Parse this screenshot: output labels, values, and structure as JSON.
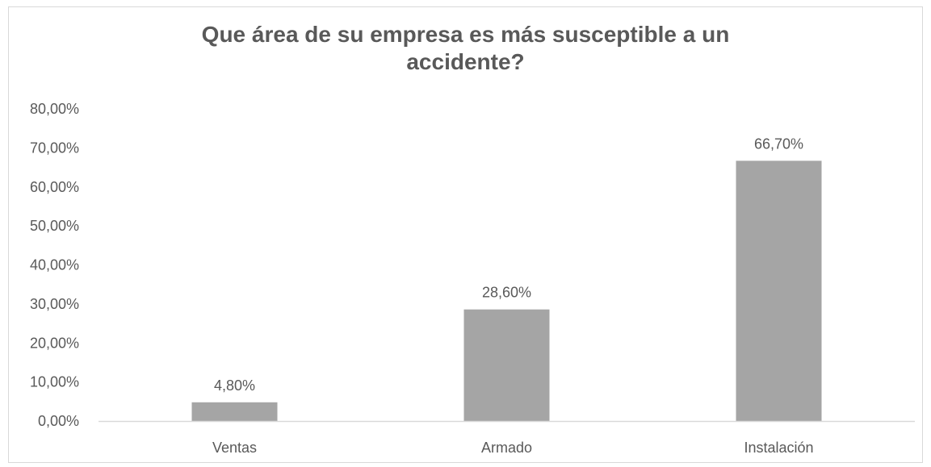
{
  "chart_data": {
    "type": "bar",
    "title_lines": [
      "Que área de su empresa es más susceptible a un",
      "accidente?"
    ],
    "categories": [
      "Ventas",
      "Armado",
      "Instalación"
    ],
    "values": [
      4.8,
      28.6,
      66.7
    ],
    "data_labels": [
      "4,80%",
      "28,60%",
      "66,70%"
    ],
    "ylim": [
      0,
      80
    ],
    "yticks": [
      0,
      10,
      20,
      30,
      40,
      50,
      60,
      70,
      80
    ],
    "ytick_labels": [
      "0,00%",
      "10,00%",
      "20,00%",
      "30,00%",
      "40,00%",
      "50,00%",
      "60,00%",
      "70,00%",
      "80,00%"
    ],
    "grid": false,
    "legend": "none",
    "bar_color": "#a5a5a5",
    "axis_color": "#d9d9d9",
    "text_color": "#595959"
  }
}
